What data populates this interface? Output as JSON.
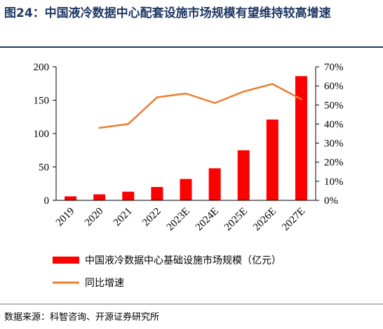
{
  "figure": {
    "title": "图24：中国液冷数据中心配套设施市场规模有望维持较高增速",
    "source": "数据来源：科智咨询、开源证券研究所"
  },
  "colors": {
    "bar": "#ff0000",
    "line": "#ed7d31",
    "title": "#1f3864"
  },
  "chart_data": {
    "type": "bar+line",
    "categories": [
      "2019",
      "2020",
      "2021",
      "2022",
      "2023E",
      "2024E",
      "2025E",
      "2026E",
      "2027E"
    ],
    "series": [
      {
        "name": "中国液冷数据中心基础设施市场规模（亿元）",
        "type": "bar",
        "axis": "left",
        "values": [
          6,
          9,
          13,
          20,
          32,
          48,
          75,
          121,
          186
        ]
      },
      {
        "name": "同比增速",
        "type": "line",
        "axis": "right",
        "values": [
          null,
          0.38,
          0.4,
          0.54,
          0.56,
          0.51,
          0.57,
          0.61,
          0.53
        ]
      }
    ],
    "y_left": {
      "min": 0,
      "max": 200,
      "ticks": [
        "0",
        "50",
        "100",
        "150",
        "200"
      ]
    },
    "y_right": {
      "min": 0,
      "max": 0.7,
      "ticks": [
        "0%",
        "10%",
        "20%",
        "30%",
        "40%",
        "50%",
        "60%",
        "70%"
      ]
    },
    "grid": false,
    "legend_position": "bottom"
  }
}
